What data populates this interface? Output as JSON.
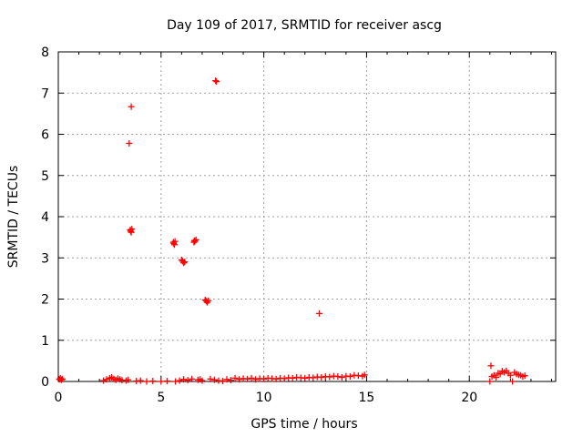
{
  "chart_data": {
    "type": "scatter",
    "title": "Day 109 of 2017, SRMTID for receiver ascg",
    "xlabel": "GPS time / hours",
    "ylabel": "SRMTID / TECUs",
    "xlim": [
      0,
      24.2
    ],
    "ylim": [
      0,
      8
    ],
    "xticks": [
      0,
      5,
      10,
      15,
      20
    ],
    "yticks": [
      0,
      1,
      2,
      3,
      4,
      5,
      6,
      7,
      8
    ],
    "grid": true,
    "marker": "+",
    "color": "#ff0000",
    "series": [
      {
        "name": "SRMTID",
        "points": [
          [
            0.05,
            0.05
          ],
          [
            0.1,
            0.08
          ],
          [
            0.15,
            0.04
          ],
          [
            0.2,
            0.06
          ],
          [
            2.2,
            0.02
          ],
          [
            2.35,
            0.05
          ],
          [
            2.5,
            0.08
          ],
          [
            2.6,
            0.1
          ],
          [
            2.7,
            0.06
          ],
          [
            2.8,
            0.04
          ],
          [
            2.9,
            0.07
          ],
          [
            3.0,
            0.05
          ],
          [
            3.1,
            0.03
          ],
          [
            3.3,
            0.02
          ],
          [
            3.4,
            0.04
          ],
          [
            3.45,
            5.78
          ],
          [
            3.55,
            6.67
          ],
          [
            3.5,
            3.68
          ],
          [
            3.52,
            3.65
          ],
          [
            3.55,
            3.62
          ],
          [
            3.58,
            3.7
          ],
          [
            3.8,
            0.01
          ],
          [
            4.0,
            0.02
          ],
          [
            4.3,
            0.0
          ],
          [
            4.6,
            0.01
          ],
          [
            5.0,
            0.0
          ],
          [
            5.3,
            0.01
          ],
          [
            5.6,
            3.38
          ],
          [
            5.62,
            3.35
          ],
          [
            5.65,
            3.32
          ],
          [
            5.68,
            3.4
          ],
          [
            5.7,
            0.0
          ],
          [
            5.9,
            0.02
          ],
          [
            6.1,
            0.05
          ],
          [
            6.0,
            2.95
          ],
          [
            6.05,
            2.92
          ],
          [
            6.1,
            2.88
          ],
          [
            6.15,
            2.9
          ],
          [
            6.3,
            0.03
          ],
          [
            6.5,
            0.06
          ],
          [
            6.6,
            3.38
          ],
          [
            6.62,
            3.42
          ],
          [
            6.65,
            3.4
          ],
          [
            6.7,
            3.44
          ],
          [
            6.8,
            0.04
          ],
          [
            6.9,
            0.05
          ],
          [
            7.0,
            0.02
          ],
          [
            7.15,
            1.98
          ],
          [
            7.2,
            1.95
          ],
          [
            7.25,
            1.92
          ],
          [
            7.3,
            1.96
          ],
          [
            7.4,
            0.06
          ],
          [
            7.6,
            0.04
          ],
          [
            7.65,
            7.3
          ],
          [
            7.7,
            7.28
          ],
          [
            7.8,
            0.02
          ],
          [
            8.0,
            0.01
          ],
          [
            8.2,
            0.05
          ],
          [
            8.4,
            0.03
          ],
          [
            8.6,
            0.08
          ],
          [
            8.8,
            0.05
          ],
          [
            9.0,
            0.07
          ],
          [
            9.2,
            0.06
          ],
          [
            9.4,
            0.08
          ],
          [
            9.6,
            0.05
          ],
          [
            9.8,
            0.07
          ],
          [
            10.0,
            0.06
          ],
          [
            10.2,
            0.08
          ],
          [
            10.4,
            0.07
          ],
          [
            10.6,
            0.06
          ],
          [
            10.8,
            0.08
          ],
          [
            11.0,
            0.07
          ],
          [
            11.2,
            0.09
          ],
          [
            11.4,
            0.08
          ],
          [
            11.6,
            0.1
          ],
          [
            11.8,
            0.09
          ],
          [
            12.0,
            0.08
          ],
          [
            12.2,
            0.1
          ],
          [
            12.4,
            0.09
          ],
          [
            12.6,
            0.11
          ],
          [
            12.8,
            0.1
          ],
          [
            12.7,
            1.65
          ],
          [
            13.0,
            0.12
          ],
          [
            13.2,
            0.11
          ],
          [
            13.4,
            0.13
          ],
          [
            13.6,
            0.12
          ],
          [
            13.8,
            0.1
          ],
          [
            14.0,
            0.13
          ],
          [
            14.2,
            0.12
          ],
          [
            14.4,
            0.15
          ],
          [
            14.6,
            0.14
          ],
          [
            14.8,
            0.13
          ],
          [
            14.9,
            0.16
          ],
          [
            21.0,
            0.0
          ],
          [
            21.05,
            0.38
          ],
          [
            21.1,
            0.12
          ],
          [
            21.2,
            0.15
          ],
          [
            21.3,
            0.1
          ],
          [
            21.4,
            0.2
          ],
          [
            21.5,
            0.18
          ],
          [
            21.6,
            0.25
          ],
          [
            21.7,
            0.22
          ],
          [
            21.8,
            0.26
          ],
          [
            21.9,
            0.2
          ],
          [
            22.0,
            0.15
          ],
          [
            22.1,
            0.0
          ],
          [
            22.2,
            0.22
          ],
          [
            22.3,
            0.18
          ],
          [
            22.4,
            0.16
          ],
          [
            22.5,
            0.15
          ],
          [
            22.6,
            0.12
          ],
          [
            22.7,
            0.14
          ]
        ]
      }
    ]
  }
}
